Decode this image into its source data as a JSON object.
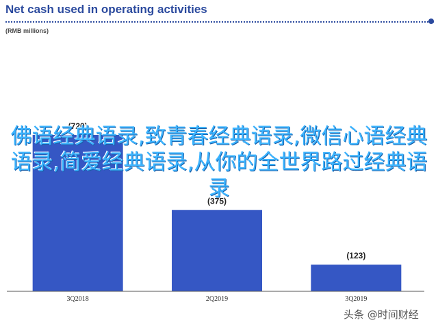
{
  "chart_data": {
    "type": "bar",
    "title": "Net cash used in operating activities",
    "subtitle": "(RMB millions)",
    "categories": [
      "3Q2018",
      "2Q2019",
      "3Q2019"
    ],
    "values": [
      720,
      375,
      123
    ],
    "data_labels": [
      "(720)",
      "(375)",
      "(123)"
    ],
    "ylim": [
      0,
      900
    ],
    "grid": false,
    "bar_color": "#3557c4",
    "title_color": "#2b4a9e"
  },
  "overlay_text": "佛语经典语录,致青春经典语录,微信心语经典语录,简爱经典语录,从你的全世界路过经典语录",
  "watermark": "头条 @时间财经"
}
